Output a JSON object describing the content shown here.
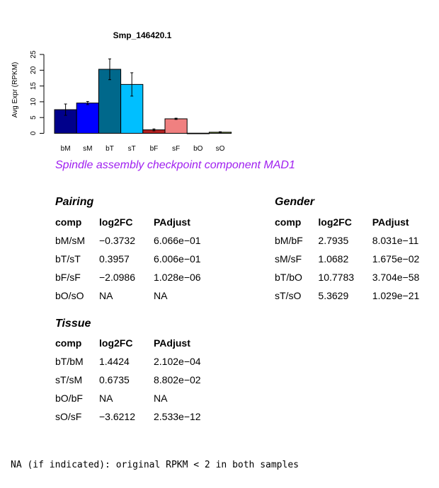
{
  "chart_data": {
    "type": "bar",
    "title": "Smp_146420.1",
    "ylabel": "Avg Expr (RPKM)",
    "xlabel": "",
    "ylim": [
      0,
      25
    ],
    "yticks": [
      0,
      5,
      10,
      15,
      20,
      25
    ],
    "categories": [
      "bM",
      "sM",
      "bT",
      "sT",
      "bF",
      "sF",
      "bO",
      "sO"
    ],
    "values": [
      7.5,
      9.6,
      20.3,
      15.5,
      1.1,
      4.6,
      0.05,
      0.35
    ],
    "errors": [
      1.8,
      0.5,
      3.3,
      3.7,
      0.3,
      0.2,
      0.0,
      0.15
    ],
    "colors": [
      "#00008b",
      "#0000ff",
      "#00688b",
      "#00bfff",
      "#b22222",
      "#f08080",
      "#a8a8a8",
      "#6e8b3d"
    ],
    "grid": false,
    "legend": "none"
  },
  "subtitle": "Spindle assembly checkpoint component MAD1",
  "tables": {
    "pairing": {
      "title": "Pairing",
      "headers": [
        "comp",
        "log2FC",
        "PAdjust"
      ],
      "rows": [
        [
          "bM/sM",
          "−0.3732",
          "6.066e−01"
        ],
        [
          "bT/sT",
          "0.3957",
          "6.006e−01"
        ],
        [
          "bF/sF",
          "−2.0986",
          "1.028e−06"
        ],
        [
          "bO/sO",
          "NA",
          "NA"
        ]
      ]
    },
    "gender": {
      "title": "Gender",
      "headers": [
        "comp",
        "log2FC",
        "PAdjust"
      ],
      "rows": [
        [
          "bM/bF",
          "2.7935",
          "8.031e−11"
        ],
        [
          "sM/sF",
          "1.0682",
          "1.675e−02"
        ],
        [
          "bT/bO",
          "10.7783",
          "3.704e−58"
        ],
        [
          "sT/sO",
          "5.3629",
          "1.029e−21"
        ]
      ]
    },
    "tissue": {
      "title": "Tissue",
      "headers": [
        "comp",
        "log2FC",
        "PAdjust"
      ],
      "rows": [
        [
          "bT/bM",
          "1.4424",
          "2.102e−04"
        ],
        [
          "sT/sM",
          "0.6735",
          "8.802e−02"
        ],
        [
          "bO/bF",
          "NA",
          "NA"
        ],
        [
          "sO/sF",
          "−3.6212",
          "2.533e−12"
        ]
      ]
    }
  },
  "footnote": "NA (if indicated): original RPKM < 2 in both samples"
}
